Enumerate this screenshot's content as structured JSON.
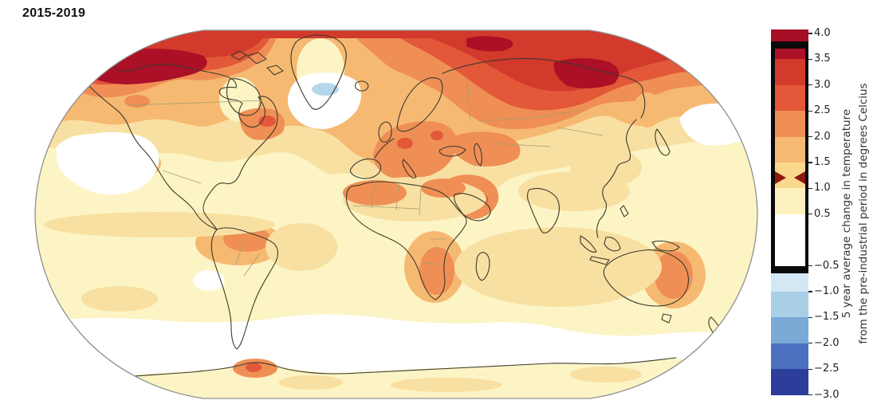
{
  "title": "2015-2019",
  "chart_data": {
    "type": "heatmap",
    "subtype": "filled-contour world map, Robinson projection",
    "title": "2015-2019",
    "period_label": "2015-2019",
    "units": "degrees Celcius",
    "value_range": [
      -3.0,
      4.0
    ],
    "colorbar": {
      "label_line1": "5 year average change in temperature",
      "label_line2": "from the pre-industrial period in degrees Celcius",
      "ticks": [
        4.0,
        3.5,
        3.0,
        2.5,
        2.0,
        1.5,
        1.0,
        0.5,
        -0.5,
        -1.0,
        -1.5,
        -2.0,
        -2.5,
        -3.0
      ],
      "segments": [
        {
          "from": 3.85,
          "to": 4.07,
          "color": "#a50f26"
        },
        {
          "from": 3.7,
          "to": 3.85,
          "color": "#0a0a0a"
        },
        {
          "from": 3.5,
          "to": 3.7,
          "color": "#ac1127"
        },
        {
          "from": 3.0,
          "to": 3.5,
          "color": "#d23a2c"
        },
        {
          "from": 2.5,
          "to": 3.0,
          "color": "#e25838"
        },
        {
          "from": 2.0,
          "to": 2.5,
          "color": "#ef8f55"
        },
        {
          "from": 1.5,
          "to": 2.0,
          "color": "#f6b972"
        },
        {
          "from": 1.0,
          "to": 1.5,
          "color": "#fbd98c"
        },
        {
          "from": 0.5,
          "to": 1.0,
          "color": "#fdf2bf"
        },
        {
          "from": -0.5,
          "to": 0.5,
          "color": "#ffffff"
        },
        {
          "from": -0.65,
          "to": -0.5,
          "color": "#0a0a0a"
        },
        {
          "from": -1.0,
          "to": -0.65,
          "color": "#d3e7f4"
        },
        {
          "from": -1.5,
          "to": -1.0,
          "color": "#a9cfe7"
        },
        {
          "from": -2.0,
          "to": -1.5,
          "color": "#79aad6"
        },
        {
          "from": -2.5,
          "to": -2.0,
          "color": "#4b71c0"
        },
        {
          "from": -3.0,
          "to": -2.5,
          "color": "#2c3e9a"
        }
      ],
      "frame": {
        "color": "#0a0a0a",
        "framed_range": [
          -0.65,
          3.85
        ]
      },
      "highlight_marker": {
        "value": 1.2,
        "shape": "inward-arrows",
        "color": "#8e1712"
      }
    },
    "palette": {
      "base": "#fcf4c4",
      "tan": "#f8e0a2",
      "lorange": "#f6b972",
      "orange": "#ef8f55",
      "dorange": "#e25838",
      "red": "#d23a2c",
      "crimson": "#ab1026",
      "white": "#ffffff",
      "lblue": "#b5d7ec",
      "coast": "#3c3a2c",
      "border": "#a59e6e",
      "outline": "#8f8f8f"
    },
    "legend_mapping": {
      "#fcf4c4": "+0.5 to +1.0",
      "#f8e0a2": "+1.0 to +1.5",
      "#f6b972": "+1.5 to +2.0",
      "#ef8f55": "+2.0 to +2.5",
      "#e25838": "+2.5 to +3.0",
      "#d23a2c": "+3.0 to +3.5",
      "#ab1026": "+3.5 to +4.0",
      "#ffffff": "-0.5 to +0.5",
      "#b5d7ec": "-1.0 to -0.5"
    },
    "map_observations": [
      {
        "region": "Arctic Ocean and high northern latitudes",
        "anomaly_degC": "+2.5 to +4"
      },
      {
        "region": "Alaska / northwestern Canada",
        "anomaly_degC": "+3.5 to +4"
      },
      {
        "region": "Central and eastern Siberia",
        "anomaly_degC": "+3 to +4"
      },
      {
        "region": "Europe, western Russia and Middle East",
        "anomaly_degC": "+1.5 to +2.5"
      },
      {
        "region": "Eastern North America",
        "anomaly_degC": "+1 to +2"
      },
      {
        "region": "Brazil / central South America",
        "anomaly_degC": "+1.5 to +2"
      },
      {
        "region": "Southern Africa",
        "anomaly_degC": "+1.5 to +2"
      },
      {
        "region": "Eastern Australia",
        "anomaly_degC": "+1.5 to +2"
      },
      {
        "region": "Most tropical and mid-latitude oceans",
        "anomaly_degC": "+0.5 to +1.5"
      },
      {
        "region": "North Atlantic south of Greenland",
        "anomaly_degC": "-1 to +0.5 cooling blob"
      },
      {
        "region": "Eastern Pacific off Mexico and NE Pacific patches",
        "anomaly_degC": "0 to +0.5"
      },
      {
        "region": "Southern Ocean ring",
        "anomaly_degC": "-0.5 to +0.5"
      },
      {
        "region": "Antarctic Peninsula spot",
        "anomaly_degC": "+2.5 to +3.5"
      }
    ]
  }
}
